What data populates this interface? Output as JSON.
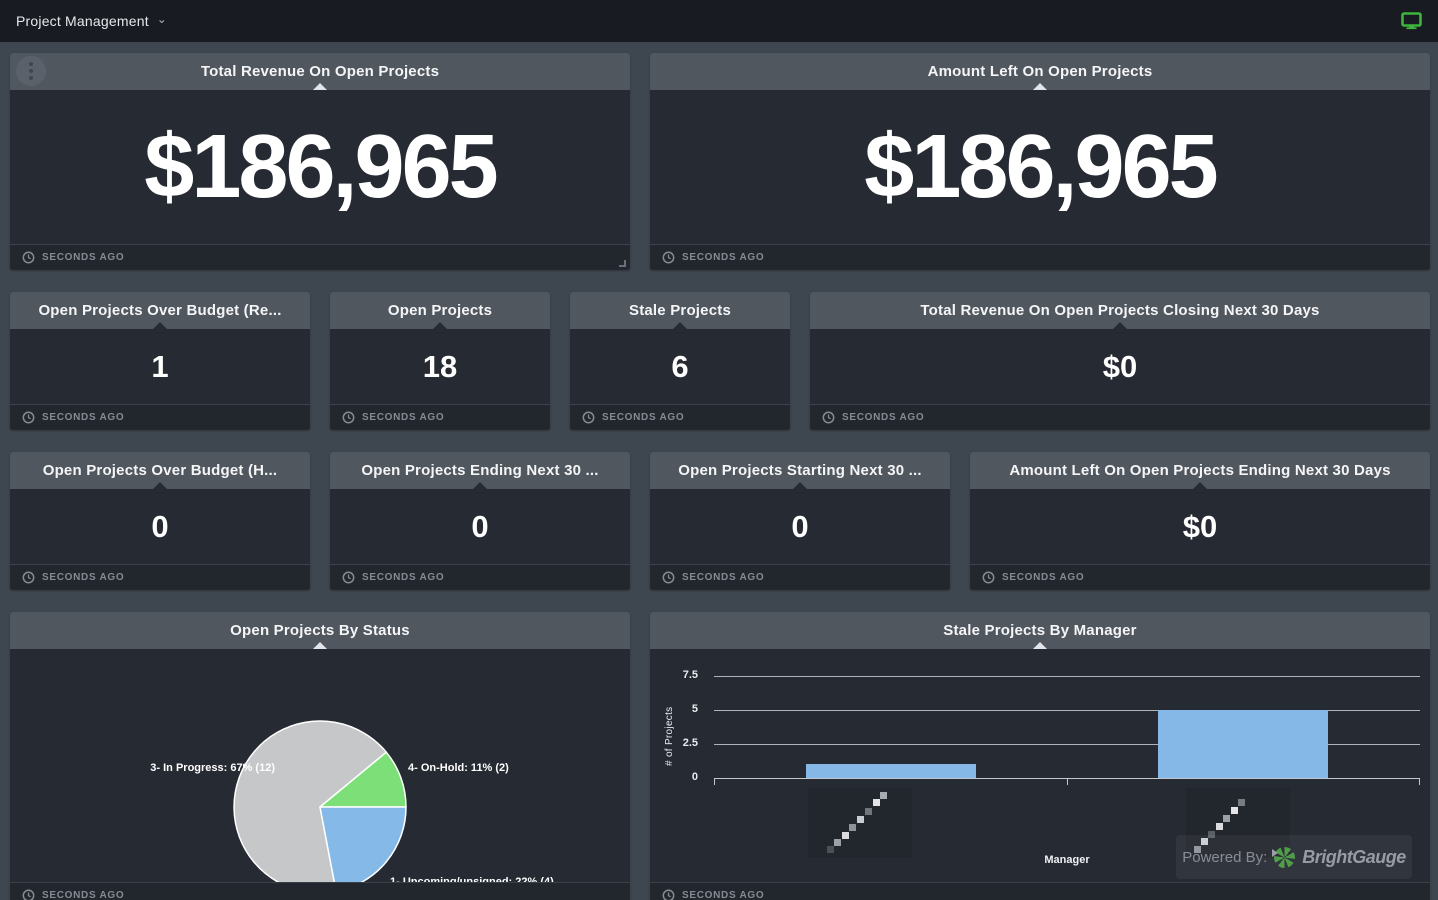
{
  "topbar": {
    "title": "Project Management"
  },
  "icons": {
    "chevron_down": "⌄"
  },
  "colors": {
    "monitor_icon_green": "#3cb53c",
    "brightgauge_green": "#4f9d4a",
    "bar_blue": "#85b8e6"
  },
  "cards": [
    {
      "title": "Total Revenue On Open Projects",
      "value": "$186,965",
      "footer": "SECONDS AGO"
    },
    {
      "title": "Amount Left On Open Projects",
      "value": "$186,965",
      "footer": "SECONDS AGO"
    },
    {
      "title": "Open Projects Over Budget (Re...",
      "value": "1",
      "footer": "SECONDS AGO"
    },
    {
      "title": "Open Projects",
      "value": "18",
      "footer": "SECONDS AGO"
    },
    {
      "title": "Stale Projects",
      "value": "6",
      "footer": "SECONDS AGO"
    },
    {
      "title": "Total Revenue On Open Projects Closing Next 30 Days",
      "value": "$0",
      "footer": "SECONDS AGO"
    },
    {
      "title": "Open Projects Over Budget (H...",
      "value": "0",
      "footer": "SECONDS AGO"
    },
    {
      "title": "Open Projects Ending Next 30 ...",
      "value": "0",
      "footer": "SECONDS AGO"
    },
    {
      "title": "Open Projects Starting Next 30 ...",
      "value": "0",
      "footer": "SECONDS AGO"
    },
    {
      "title": "Amount Left On Open Projects Ending Next 30 Days",
      "value": "$0",
      "footer": "SECONDS AGO"
    },
    {
      "title": "Open Projects By Status",
      "footer": "SECONDS AGO"
    },
    {
      "title": "Stale Projects By Manager",
      "footer": "SECONDS AGO"
    }
  ],
  "chart_data": [
    {
      "type": "pie",
      "title": "Open Projects By Status",
      "start_angle_deg": 169.2,
      "slices": [
        {
          "label": "3- In Progress",
          "pct": 67,
          "count": 12,
          "color": "#c6c7c8",
          "display": "3- In Progress: 67% (12)"
        },
        {
          "label": "4- On-Hold",
          "pct": 11,
          "count": 2,
          "color": "#7ddf77",
          "display": "4- On-Hold: 11% (2)"
        },
        {
          "label": "1- Upcoming/unsigned",
          "pct": 22,
          "count": 4,
          "color": "#85b9e8",
          "display": "1- Upcoming/unsigned: 22% (4)"
        }
      ],
      "legend_position": "around"
    },
    {
      "type": "bar",
      "title": "Stale Projects By Manager",
      "categories": [
        "",
        ""
      ],
      "categories_censored": true,
      "values": [
        1,
        5
      ],
      "xlabel": "Manager",
      "ylabel": "# of Projects",
      "yticks": [
        0,
        2.5,
        5,
        7.5
      ],
      "ylim": [
        0,
        8.2
      ],
      "bar_color": "#85b8e6",
      "grid": true
    }
  ],
  "watermark": {
    "prefix": "Powered By:",
    "brand": "BrightGauge"
  }
}
